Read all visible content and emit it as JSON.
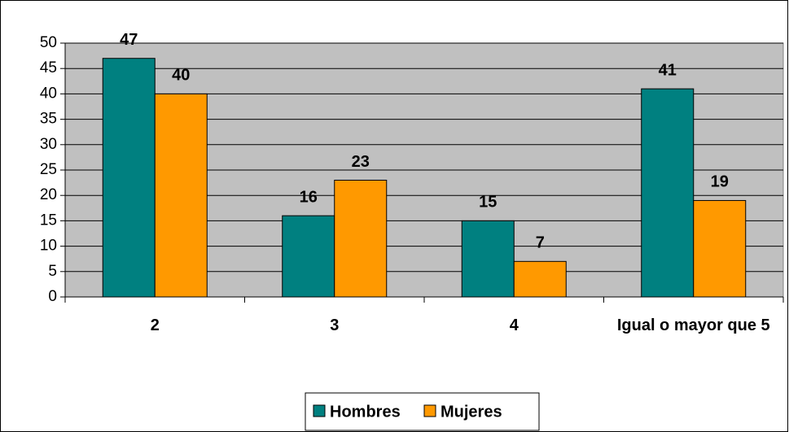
{
  "chart_data": {
    "type": "bar",
    "categories": [
      "2",
      "3",
      "4",
      "Igual o mayor que 5"
    ],
    "series": [
      {
        "name": "Hombres",
        "color": "#008080",
        "values": [
          47,
          16,
          15,
          41
        ]
      },
      {
        "name": "Mujeres",
        "color": "#ff9900",
        "values": [
          40,
          23,
          7,
          19
        ]
      }
    ],
    "ylim": [
      0,
      50
    ],
    "yticks": [
      0,
      5,
      10,
      15,
      20,
      25,
      30,
      35,
      40,
      45,
      50
    ],
    "grid": true,
    "plot_background": "#c0c0c0",
    "legend": "bottom"
  }
}
